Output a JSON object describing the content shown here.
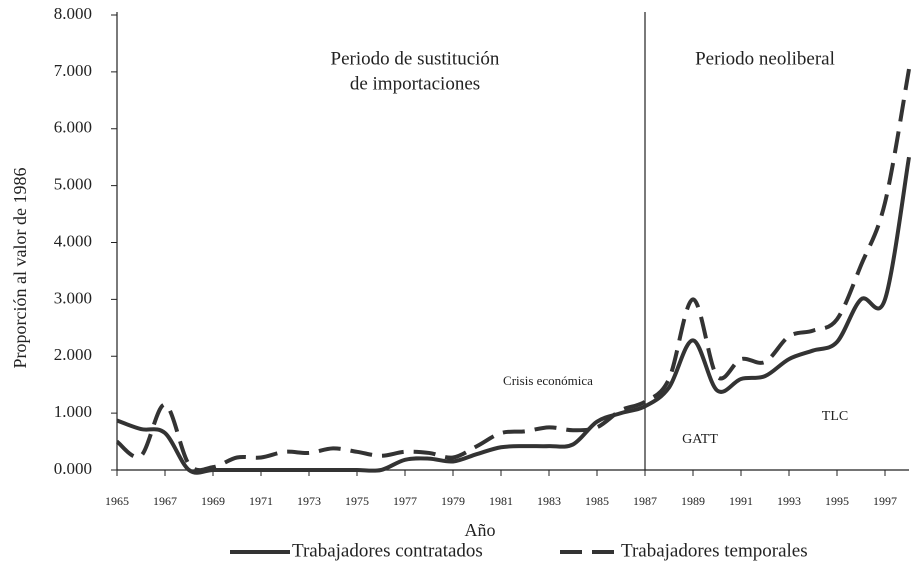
{
  "chart_data": {
    "type": "line",
    "x": [
      1965,
      1966,
      1967,
      1968,
      1969,
      1970,
      1971,
      1972,
      1973,
      1974,
      1975,
      1976,
      1977,
      1978,
      1979,
      1980,
      1981,
      1982,
      1983,
      1984,
      1985,
      1986,
      1987,
      1988,
      1989,
      1990,
      1991,
      1992,
      1993,
      1994,
      1995,
      1996,
      1997,
      1998
    ],
    "series": [
      {
        "name": "Trabajadores contratados",
        "color": "#333333",
        "dash": false,
        "values": [
          0.87,
          0.72,
          0.65,
          0.0,
          0.0,
          0.0,
          0.0,
          0.0,
          0.0,
          0.0,
          0.0,
          0.0,
          0.18,
          0.2,
          0.15,
          0.28,
          0.4,
          0.42,
          0.42,
          0.45,
          0.85,
          1.0,
          1.12,
          1.45,
          2.28,
          1.4,
          1.6,
          1.65,
          1.95,
          2.1,
          2.25,
          3.0,
          3.0,
          5.5
        ]
      },
      {
        "name": "Trabajadores temporales",
        "color": "#333333",
        "dash": true,
        "values": [
          0.5,
          0.25,
          1.15,
          0.1,
          0.05,
          0.22,
          0.22,
          0.32,
          0.3,
          0.38,
          0.32,
          0.25,
          0.32,
          0.3,
          0.22,
          0.42,
          0.65,
          0.68,
          0.75,
          0.7,
          0.75,
          1.05,
          1.2,
          1.6,
          3.0,
          1.65,
          1.95,
          1.9,
          2.35,
          2.45,
          2.65,
          3.6,
          4.7,
          7.05
        ]
      }
    ],
    "xlim": [
      1965,
      1998
    ],
    "xticks": [
      1965,
      1967,
      1969,
      1971,
      1973,
      1975,
      1977,
      1979,
      1981,
      1983,
      1985,
      1987,
      1989,
      1991,
      1993,
      1995,
      1997
    ],
    "ylim": [
      0,
      8
    ],
    "yticks": [
      {
        "value": 0,
        "label": "0.000"
      },
      {
        "value": 1,
        "label": "1.000"
      },
      {
        "value": 2,
        "label": "2.000"
      },
      {
        "value": 3,
        "label": "3.000"
      },
      {
        "value": 4,
        "label": "4.000"
      },
      {
        "value": 5,
        "label": "5.000"
      },
      {
        "value": 6,
        "label": "6.000"
      },
      {
        "value": 7,
        "label": "7.000"
      },
      {
        "value": 8,
        "label": "8.000"
      }
    ],
    "xlabel": "Año",
    "ylabel": "Proporción al valor de 1986",
    "vline": 1987,
    "annotations": [
      [
        "Periodo de sustitución",
        "de importaciones"
      ],
      [
        "Periodo neoliberal"
      ],
      [
        "Crisis económica"
      ],
      [
        "GATT"
      ],
      [
        "TLC"
      ]
    ],
    "legend": "bottom"
  }
}
